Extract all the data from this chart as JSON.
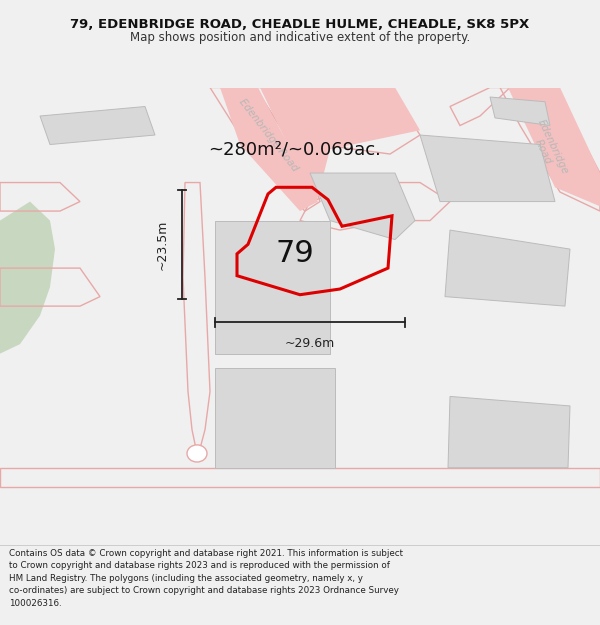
{
  "title_line1": "79, EDENBRIDGE ROAD, CHEADLE HULME, CHEADLE, SK8 5PX",
  "title_line2": "Map shows position and indicative extent of the property.",
  "area_label": "~280m²/~0.069ac.",
  "number_label": "79",
  "width_label": "~29.6m",
  "height_label": "~23.5m",
  "footer_lines": [
    "Contains OS data © Crown copyright and database right 2021. This information is subject",
    "to Crown copyright and database rights 2023 and is reproduced with the permission of",
    "HM Land Registry. The polygons (including the associated geometry, namely x, y",
    "co-ordinates) are subject to Crown copyright and database rights 2023 Ordnance Survey",
    "100026316."
  ],
  "bg_color": "#f0f0f0",
  "map_bg": "#ffffff",
  "road_color": "#f5c0c0",
  "road_edge_color": "#e0a0a0",
  "plot_color": "#dd0000",
  "green_color": "#c8d8c0",
  "building_fill": "#d8d8d8",
  "building_edge": "#bbbbbb",
  "road_text_color": "#b8b8b8",
  "dim_color": "#222222",
  "road_line_color": "#e8a8a8"
}
